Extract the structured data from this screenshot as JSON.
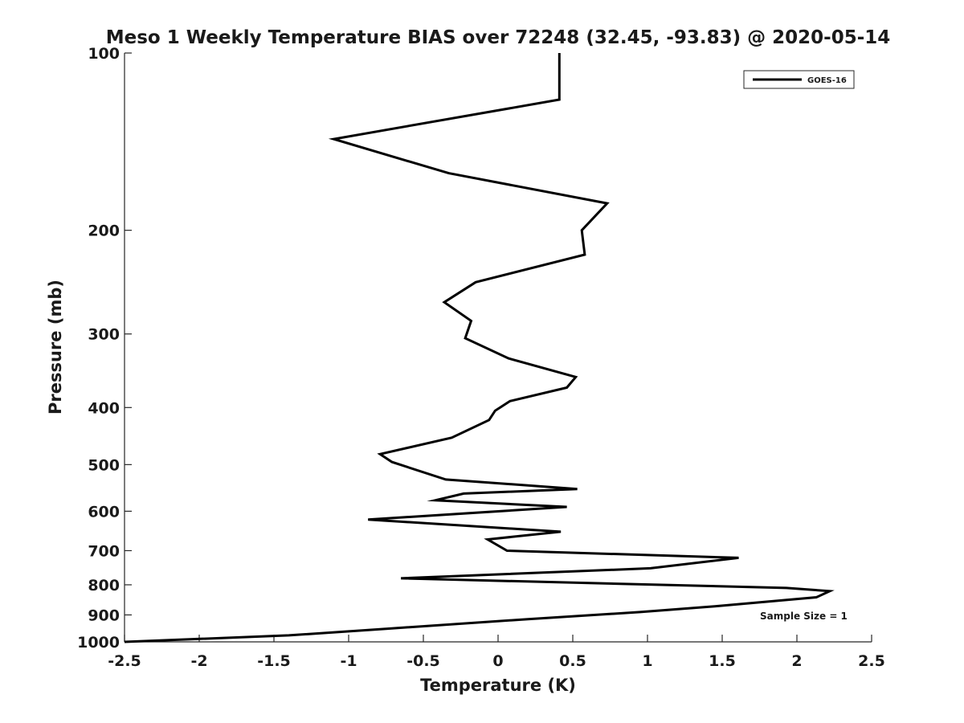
{
  "chart_data": {
    "type": "line",
    "title": "Meso 1 Weekly Temperature BIAS over 72248 (32.45, -93.83) @ 2020-05-14",
    "xlabel": "Temperature (K)",
    "ylabel": "Pressure (mb)",
    "xlim": [
      -2.5,
      2.5
    ],
    "ylim": [
      100,
      1000
    ],
    "y_scale": "log",
    "y_reversed": true,
    "grid": false,
    "x_ticks": [
      "-2.5",
      "-2",
      "-1.5",
      "-1",
      "-0.5",
      "0",
      "0.5",
      "1",
      "1.5",
      "2",
      "2.5"
    ],
    "x_tick_values": [
      -2.5,
      -2,
      -1.5,
      -1,
      -0.5,
      0,
      0.5,
      1,
      1.5,
      2,
      2.5
    ],
    "y_ticks": [
      "100",
      "200",
      "300",
      "400",
      "500",
      "600",
      "700",
      "800",
      "900",
      "1000"
    ],
    "y_tick_values": [
      100,
      200,
      300,
      400,
      500,
      600,
      700,
      800,
      900,
      1000
    ],
    "legend": {
      "placement": "top-right",
      "entries": [
        "GOES-16"
      ]
    },
    "annotation": "Sample Size = 1",
    "series": [
      {
        "name": "GOES-16",
        "color": "#000000",
        "points": [
          [
            0.41,
            100
          ],
          [
            0.41,
            120
          ],
          [
            -1.1,
            140
          ],
          [
            -0.33,
            160
          ],
          [
            0.73,
            180
          ],
          [
            0.56,
            200
          ],
          [
            0.58,
            220
          ],
          [
            -0.15,
            245
          ],
          [
            -0.36,
            265
          ],
          [
            -0.18,
            285
          ],
          [
            -0.22,
            305
          ],
          [
            0.07,
            330
          ],
          [
            0.52,
            355
          ],
          [
            0.46,
            370
          ],
          [
            0.08,
            390
          ],
          [
            -0.02,
            405
          ],
          [
            -0.06,
            420
          ],
          [
            -0.31,
            450
          ],
          [
            -0.79,
            480
          ],
          [
            -0.71,
            495
          ],
          [
            -0.35,
            530
          ],
          [
            0.53,
            550
          ],
          [
            -0.23,
            560
          ],
          [
            -0.42,
            575
          ],
          [
            0.46,
            590
          ],
          [
            -0.87,
            620
          ],
          [
            0.42,
            650
          ],
          [
            -0.07,
            670
          ],
          [
            0.06,
            700
          ],
          [
            1.61,
            720
          ],
          [
            1.02,
            750
          ],
          [
            -0.65,
            780
          ],
          [
            1.93,
            810
          ],
          [
            2.22,
            820
          ],
          [
            2.13,
            840
          ],
          [
            1.45,
            870
          ],
          [
            0.95,
            890
          ],
          [
            0.2,
            915
          ],
          [
            -0.75,
            950
          ],
          [
            -1.4,
            975
          ],
          [
            -2.5,
            1000
          ]
        ]
      }
    ]
  }
}
